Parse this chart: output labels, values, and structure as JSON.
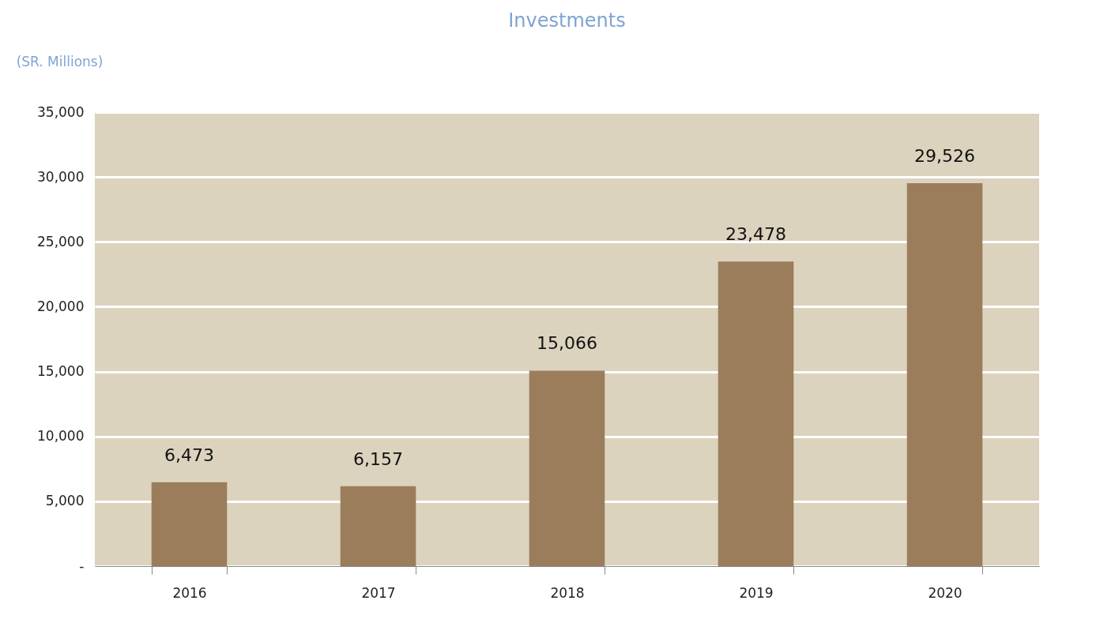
{
  "chart_data": {
    "type": "bar",
    "title": "Investments",
    "ylabel": "(SR. Millions)",
    "categories": [
      "2016",
      "2017",
      "2018",
      "2019",
      "2020"
    ],
    "values": [
      6473,
      6157,
      15066,
      23478,
      29526
    ],
    "value_labels": [
      "6,473",
      "6,157",
      "15,066",
      "23,478",
      "29,526"
    ],
    "color": "#9b7d5c",
    "ylim": [
      0,
      35000
    ],
    "yticks": [
      {
        "value": 0,
        "label": "-"
      },
      {
        "value": 5000,
        "label": "5,000"
      },
      {
        "value": 10000,
        "label": "10,000"
      },
      {
        "value": 15000,
        "label": "15,000"
      },
      {
        "value": 20000,
        "label": "20,000"
      },
      {
        "value": 25000,
        "label": "25,000"
      },
      {
        "value": 30000,
        "label": "30,000"
      },
      {
        "value": 35000,
        "label": "35,000"
      }
    ],
    "grid": "y"
  }
}
